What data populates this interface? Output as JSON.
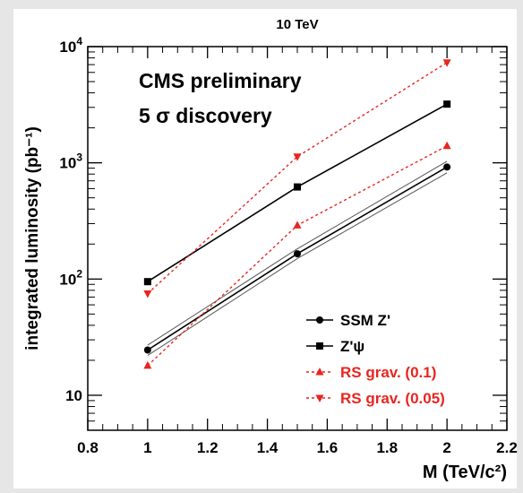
{
  "chart_data": {
    "type": "line",
    "title": "10 TeV",
    "xlabel": "M (TeV/c²)",
    "ylabel": "integrated luminosity (pb⁻¹)",
    "xlim": [
      0.8,
      2.2
    ],
    "ylim": [
      5,
      10000
    ],
    "y_scale": "log",
    "x_ticks": [
      {
        "value": 0.8,
        "label": "0.8"
      },
      {
        "value": 1.0,
        "label": "1"
      },
      {
        "value": 1.2,
        "label": "1.2"
      },
      {
        "value": 1.4,
        "label": "1.4"
      },
      {
        "value": 1.6,
        "label": "1.6"
      },
      {
        "value": 1.8,
        "label": "1.8"
      },
      {
        "value": 2.0,
        "label": "2"
      },
      {
        "value": 2.2,
        "label": "2.2"
      }
    ],
    "y_ticks": [
      {
        "value": 10,
        "label": "10",
        "sup": ""
      },
      {
        "value": 100,
        "label": "10",
        "sup": "2"
      },
      {
        "value": 1000,
        "label": "10",
        "sup": "3"
      },
      {
        "value": 10000,
        "label": "10",
        "sup": "4"
      }
    ],
    "annotations": [
      "CMS preliminary",
      "5 σ discovery"
    ],
    "x": [
      1.0,
      1.5,
      2.0
    ],
    "series": [
      {
        "name": "SSM Z'",
        "values": [
          24.5,
          165,
          920
        ],
        "color": "#000000",
        "style": "solid",
        "marker": "circle",
        "band": {
          "upper": [
            27,
            182,
            1030
          ],
          "lower": [
            22,
            150,
            820
          ]
        }
      },
      {
        "name": "Z'ψ",
        "values": [
          95,
          620,
          3200
        ],
        "color": "#000000",
        "style": "solid",
        "marker": "square"
      },
      {
        "name": "RS grav. (0.1)",
        "values": [
          18,
          290,
          1400
        ],
        "color": "#e8251f",
        "style": "dotted",
        "marker": "triangle-up"
      },
      {
        "name": "RS grav. (0.05)",
        "values": [
          75,
          1130,
          7300
        ],
        "color": "#e8251f",
        "style": "dotted",
        "marker": "triangle-down"
      }
    ],
    "legend": {
      "position": "bottom-right"
    }
  }
}
